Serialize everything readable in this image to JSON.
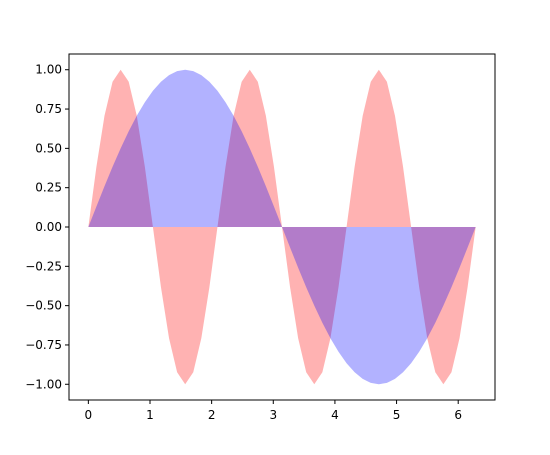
{
  "chart_data": {
    "type": "area",
    "title": "",
    "xlabel": "",
    "ylabel": "",
    "xlim": [
      -0.314,
      6.597
    ],
    "ylim": [
      -1.1,
      1.1
    ],
    "x_ticks": [
      0,
      1,
      2,
      3,
      4,
      5,
      6
    ],
    "x_tick_labels": [
      "0",
      "1",
      "2",
      "3",
      "4",
      "5",
      "6"
    ],
    "y_ticks": [
      -1.0,
      -0.75,
      -0.5,
      -0.25,
      0.0,
      0.25,
      0.5,
      0.75,
      1.0
    ],
    "y_tick_labels": [
      "−1.00",
      "−0.75",
      "−0.50",
      "−0.25",
      "0.00",
      "0.25",
      "0.50",
      "0.75",
      "1.00"
    ],
    "grid": false,
    "series": [
      {
        "color": "#ff0000",
        "alpha": 0.3,
        "baseline": 0,
        "x": [
          0,
          0.1309,
          0.2618,
          0.3927,
          0.5236,
          0.6545,
          0.7854,
          0.9163,
          1.0472,
          1.1781,
          1.309,
          1.4399,
          1.5708,
          1.7017,
          1.8326,
          1.9635,
          2.0944,
          2.2253,
          2.3562,
          2.4871,
          2.618,
          2.7489,
          2.8798,
          3.0107,
          3.1416,
          3.2725,
          3.4034,
          3.5343,
          3.6652,
          3.7961,
          3.927,
          4.0579,
          4.1888,
          4.3197,
          4.4506,
          4.5815,
          4.7124,
          4.8433,
          4.9742,
          5.1051,
          5.236,
          5.3669,
          5.4978,
          5.6287,
          5.7596,
          5.8905,
          6.0214,
          6.1523,
          6.2832
        ],
        "y": [
          0,
          0.3827,
          0.7071,
          0.9239,
          1.0,
          0.9239,
          0.7071,
          0.3827,
          0,
          -0.3827,
          -0.7071,
          -0.9239,
          -1.0,
          -0.9239,
          -0.7071,
          -0.3827,
          0,
          0.3827,
          0.7071,
          0.9239,
          1.0,
          0.9239,
          0.7071,
          0.3827,
          0,
          -0.3827,
          -0.7071,
          -0.9239,
          -1.0,
          -0.9239,
          -0.7071,
          -0.3827,
          0,
          0.3827,
          0.7071,
          0.9239,
          1.0,
          0.9239,
          0.7071,
          0.3827,
          0,
          -0.3827,
          -0.7071,
          -0.9239,
          -1.0,
          -0.9239,
          -0.7071,
          -0.3827,
          0
        ]
      },
      {
        "color": "#0000ff",
        "alpha": 0.3,
        "baseline": 0,
        "x": [
          0,
          0.1309,
          0.2618,
          0.3927,
          0.5236,
          0.6545,
          0.7854,
          0.9163,
          1.0472,
          1.1781,
          1.309,
          1.4399,
          1.5708,
          1.7017,
          1.8326,
          1.9635,
          2.0944,
          2.2253,
          2.3562,
          2.4871,
          2.618,
          2.7489,
          2.8798,
          3.0107,
          3.1416,
          3.2725,
          3.4034,
          3.5343,
          3.6652,
          3.7961,
          3.927,
          4.0579,
          4.1888,
          4.3197,
          4.4506,
          4.5815,
          4.7124,
          4.8433,
          4.9742,
          5.1051,
          5.236,
          5.3669,
          5.4978,
          5.6287,
          5.7596,
          5.8905,
          6.0214,
          6.1523,
          6.2832
        ],
        "y": [
          0,
          0.1305,
          0.2588,
          0.3827,
          0.5,
          0.6088,
          0.7071,
          0.7934,
          0.866,
          0.9239,
          0.9659,
          0.9914,
          1.0,
          0.9914,
          0.9659,
          0.9239,
          0.866,
          0.7934,
          0.7071,
          0.6088,
          0.5,
          0.3827,
          0.2588,
          0.1305,
          0,
          -0.1305,
          -0.2588,
          -0.3827,
          -0.5,
          -0.6088,
          -0.7071,
          -0.7934,
          -0.866,
          -0.9239,
          -0.9659,
          -0.9914,
          -1.0,
          -0.9914,
          -0.9659,
          -0.9239,
          -0.866,
          -0.7934,
          -0.7071,
          -0.6088,
          -0.5,
          -0.3827,
          -0.2588,
          -0.1305,
          0
        ]
      }
    ]
  }
}
